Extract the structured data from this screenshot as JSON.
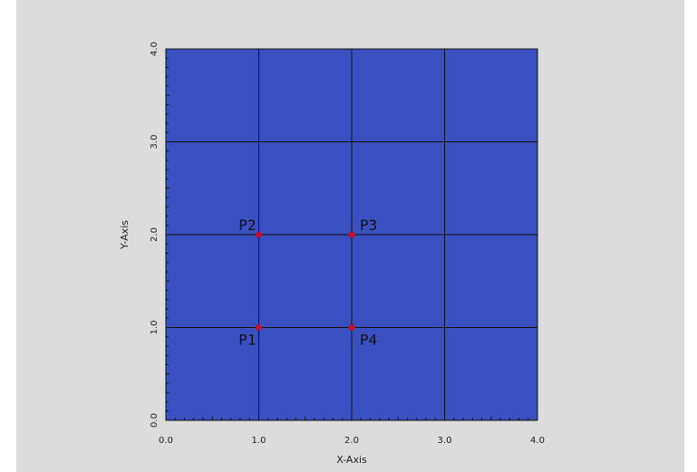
{
  "chart_data": {
    "type": "scatter",
    "xlabel": "X-Axis",
    "ylabel": "Y-Axis",
    "xlim": [
      0.0,
      4.0
    ],
    "ylim": [
      0.0,
      4.0
    ],
    "x_ticks": [
      "0.0",
      "1.0",
      "2.0",
      "3.0",
      "4.0"
    ],
    "y_ticks": [
      "0.0",
      "1.0",
      "2.0",
      "3.0",
      "4.0"
    ],
    "grid": true,
    "plot_background": "#3a4fc0",
    "page_background": "#dcdcdc",
    "grid_color": "#111111",
    "point_color": "#c0102a",
    "points": [
      {
        "label": "P1",
        "x": 1.0,
        "y": 1.0
      },
      {
        "label": "P2",
        "x": 1.0,
        "y": 2.0
      },
      {
        "label": "P3",
        "x": 2.0,
        "y": 2.0
      },
      {
        "label": "P4",
        "x": 2.0,
        "y": 1.0
      }
    ]
  }
}
